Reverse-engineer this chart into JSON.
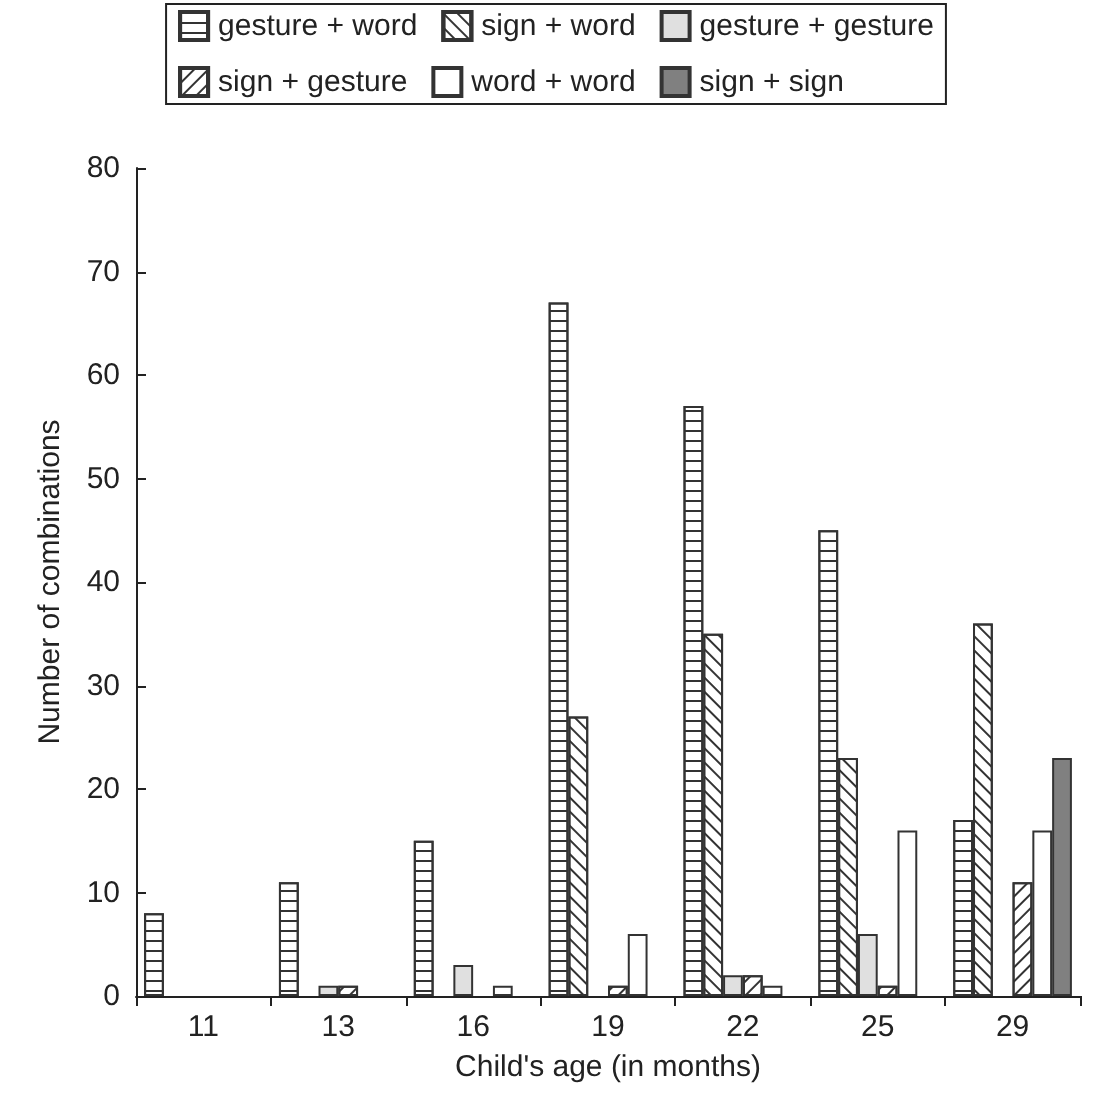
{
  "chart_data": {
    "type": "bar",
    "xlabel": "Child's age (in months)",
    "ylabel": "Number of combinations",
    "categories": [
      "11",
      "13",
      "16",
      "19",
      "22",
      "25",
      "29"
    ],
    "series": [
      {
        "name": "gesture + word",
        "color": "#ffffff",
        "values": [
          8,
          11,
          15,
          67,
          57,
          45,
          17
        ]
      },
      {
        "name": "sign + word",
        "color": "#ffffff",
        "values": [
          0,
          0,
          0,
          27,
          35,
          23,
          36
        ]
      },
      {
        "name": "gesture + gesture",
        "color": "#e0e0e0",
        "values": [
          0,
          1,
          3,
          0,
          2,
          6,
          0
        ]
      },
      {
        "name": "sign + gesture",
        "color": "#ffffff",
        "values": [
          0,
          1,
          0,
          1,
          2,
          1,
          11
        ]
      },
      {
        "name": "word + word",
        "color": "#ffffff",
        "values": [
          0,
          0,
          1,
          6,
          1,
          16,
          16
        ]
      },
      {
        "name": "sign + sign",
        "color": "#808080",
        "values": [
          0,
          0,
          0,
          0,
          0,
          0,
          23
        ]
      }
    ],
    "ylim": [
      0,
      80
    ],
    "yticks": [
      0,
      10,
      20,
      30,
      40,
      50,
      60,
      70,
      80
    ],
    "grid": false,
    "legend": "top"
  }
}
